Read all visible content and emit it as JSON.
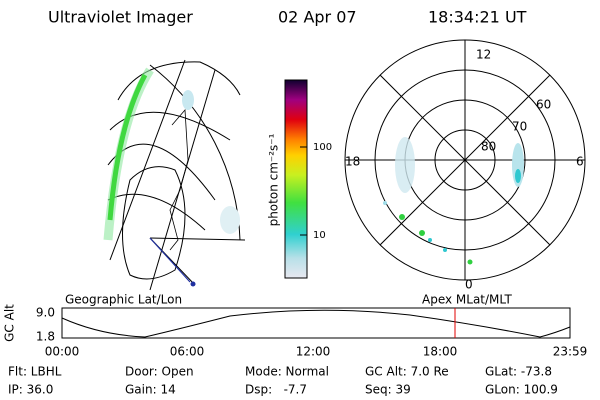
{
  "header": {
    "title": "Ultraviolet Imager",
    "date": "02 Apr 07",
    "time": "18:34:21 UT"
  },
  "left_map": {
    "label": "Geographic Lat/Lon"
  },
  "colorbar": {
    "label": "photon cm⁻²s⁻¹",
    "ticks": [
      "100",
      "10"
    ]
  },
  "polar_plot": {
    "label": "Apex MLat/MLT",
    "mlt_labels": [
      "12",
      "18",
      "6",
      "0"
    ],
    "mlat_labels": [
      "60",
      "70",
      "80"
    ]
  },
  "timeline": {
    "axis_label": "GC Alt",
    "y_labels": [
      "9.0",
      "1.8"
    ],
    "x_labels": [
      "00:00",
      "06:00",
      "12:00",
      "18:00",
      "23:59"
    ]
  },
  "info": {
    "rows": [
      [
        "Flt: LBHL",
        "Door: Open",
        "Mode: Normal",
        "GC Alt: 7.0 Re",
        "GLat: -73.8"
      ],
      [
        "IP: 36.0",
        "Gain: 14",
        "Dsp:   -7.7",
        "Seq: 39",
        "GLon: 100.9"
      ]
    ]
  }
}
